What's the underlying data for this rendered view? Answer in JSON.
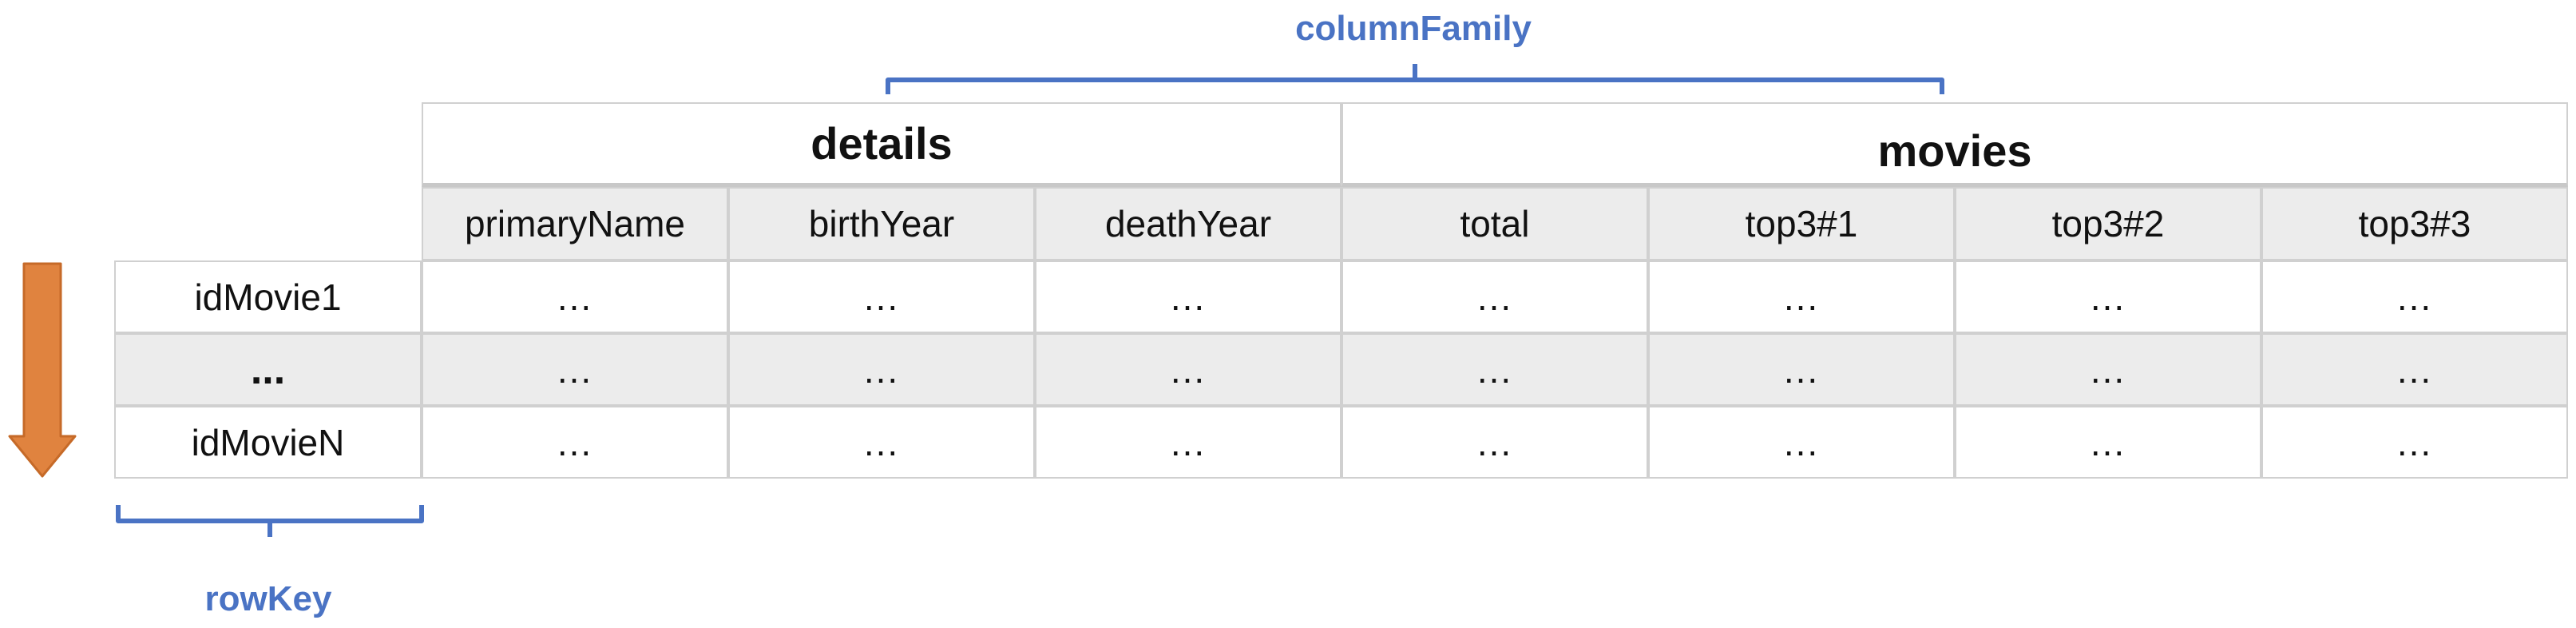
{
  "annotations": {
    "column_family_label": "columnFamily",
    "row_key_label": "rowKey",
    "bracket_color": "#4a73c4",
    "arrow_color": "#e0833f"
  },
  "column_families": [
    {
      "name": "details",
      "columns": [
        "primaryName",
        "birthYear",
        "deathYear"
      ]
    },
    {
      "name": "movies",
      "columns": [
        "total",
        "top3#1",
        "top3#2",
        "top3#3"
      ]
    }
  ],
  "rows": [
    {
      "key": "idMovie1",
      "values": [
        "...",
        "...",
        "...",
        "...",
        "...",
        "...",
        "..."
      ]
    },
    {
      "key": "...",
      "values": [
        "...",
        "...",
        "...",
        "...",
        "...",
        "...",
        "..."
      ]
    },
    {
      "key": "idMovieN",
      "values": [
        "...",
        "...",
        "...",
        "...",
        "...",
        "...",
        "..."
      ]
    }
  ]
}
